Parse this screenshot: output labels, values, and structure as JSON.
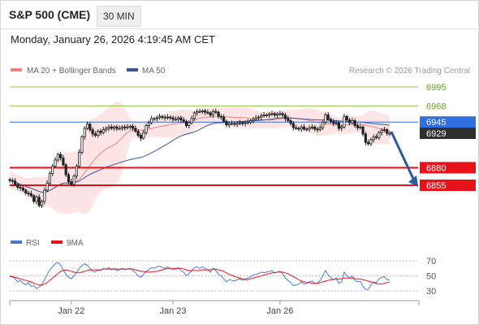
{
  "header": {
    "instrument": "S&P 500 (CME)",
    "timeframe": "30 MIN",
    "timestamp": "Monday, January 26, 2026 4:19:45 AM CET"
  },
  "legend": {
    "ma20": "MA 20 + Bollinger Bands",
    "ma50": "MA 50",
    "copyright": "Research © 2026 Trading Central",
    "rsi": "RSI",
    "ma9": "9MA"
  },
  "colors": {
    "ma20": "#f08080",
    "band": "#fde0e0",
    "ma50": "#35589a",
    "support": "#e8121b",
    "resistance_green": "#8cc63f",
    "pivot_blue": "#2f6fe0",
    "last_price": "#2f2f2f",
    "rsi": "#4a78d8",
    "rsi_ma": "#e8121b",
    "arrow": "#2b5c9a"
  },
  "chart_data": [
    {
      "type": "candlestick",
      "title": "S&P 500 (CME)",
      "interval": "30 MIN",
      "x_ticks": [
        "Jan 22",
        "Jan 23",
        "Jan 26"
      ],
      "y_range": [
        6800,
        7010
      ],
      "close": [
        6862,
        6861,
        6856,
        6852,
        6851,
        6848,
        6844,
        6843,
        6840,
        6832,
        6838,
        6826,
        6832,
        6848,
        6858,
        6872,
        6882,
        6891,
        6899,
        6894,
        6884,
        6870,
        6860,
        6856,
        6868,
        6882,
        6902,
        6924,
        6936,
        6942,
        6934,
        6928,
        6926,
        6932,
        6930,
        6934,
        6936,
        6938,
        6936,
        6938,
        6936,
        6936,
        6938,
        6937,
        6938,
        6939,
        6936,
        6932,
        6926,
        6922,
        6930,
        6940,
        6944,
        6950,
        6950,
        6951,
        6953,
        6952,
        6951,
        6952,
        6951,
        6949,
        6949,
        6951,
        6948,
        6946,
        6940,
        6944,
        6950,
        6958,
        6960,
        6960,
        6961,
        6959,
        6958,
        6955,
        6960,
        6959,
        6953,
        6952,
        6946,
        6941,
        6943,
        6943,
        6942,
        6943,
        6944,
        6943,
        6944,
        6945,
        6947,
        6949,
        6951,
        6952,
        6954,
        6955,
        6955,
        6956,
        6957,
        6955,
        6956,
        6957,
        6955,
        6950,
        6947,
        6943,
        6937,
        6936,
        6935,
        6938,
        6935,
        6935,
        6937,
        6938,
        6935,
        6934,
        6937,
        6945,
        6955,
        6949,
        6946,
        6943,
        6944,
        6936,
        6938,
        6953,
        6948,
        6944,
        6947,
        6940,
        6937,
        6938,
        6928,
        6916,
        6914,
        6920,
        6924,
        6923,
        6930,
        6933,
        6934,
        6929,
        6929
      ],
      "support_levels": [
        6880,
        6855
      ],
      "resistance_levels": [
        6995,
        6968
      ],
      "pivot": 6945,
      "last": 6929,
      "legend": [
        "MA 20 + Bollinger Bands",
        "MA 50"
      ],
      "projection": "down to 6855",
      "grid": false
    },
    {
      "type": "line",
      "series_names": [
        "RSI",
        "9MA"
      ],
      "y_ticks": [
        70,
        50,
        30
      ],
      "y_range": [
        20,
        80
      ],
      "rsi": [
        50,
        49,
        46,
        42,
        44,
        40,
        38,
        41,
        36,
        37,
        33,
        35,
        38,
        45,
        52,
        58,
        62,
        66,
        68,
        64,
        58,
        52,
        48,
        46,
        50,
        55,
        60,
        64,
        66,
        64,
        60,
        56,
        55,
        58,
        57,
        60,
        59,
        61,
        58,
        60,
        57,
        58,
        60,
        58,
        59,
        60,
        57,
        54,
        50,
        48,
        52,
        56,
        58,
        61,
        60,
        62,
        63,
        61,
        60,
        62,
        60,
        58,
        59,
        61,
        57,
        55,
        50,
        53,
        57,
        61,
        62,
        60,
        62,
        60,
        58,
        55,
        60,
        57,
        52,
        50,
        46,
        42,
        45,
        44,
        43,
        45,
        46,
        44,
        46,
        47,
        49,
        51,
        52,
        53,
        55,
        54,
        55,
        56,
        57,
        54,
        55,
        56,
        53,
        47,
        44,
        41,
        37,
        38,
        39,
        42,
        39,
        40,
        42,
        43,
        40,
        40,
        44,
        50,
        57,
        51,
        48,
        45,
        47,
        40,
        42,
        55,
        50,
        47,
        50,
        44,
        42,
        43,
        36,
        32,
        32,
        38,
        42,
        41,
        46,
        48,
        49,
        45,
        45
      ],
      "rsi_ma": [
        49,
        49,
        48,
        47,
        46,
        45,
        44,
        43,
        42,
        40,
        39,
        38,
        38,
        39,
        41,
        44,
        47,
        50,
        53,
        56,
        57,
        58,
        57,
        56,
        55,
        54,
        54,
        55,
        56,
        57,
        58,
        58,
        58,
        58,
        58,
        59,
        59,
        59,
        59,
        59,
        59,
        59,
        59,
        59,
        59,
        59,
        59,
        58,
        57,
        56,
        56,
        55,
        55,
        55,
        56,
        56,
        57,
        58,
        59,
        60,
        60,
        60,
        60,
        60,
        60,
        59,
        58,
        57,
        57,
        57,
        57,
        57,
        58,
        58,
        58,
        58,
        59,
        59,
        58,
        57,
        56,
        54,
        52,
        51,
        49,
        48,
        47,
        46,
        45,
        45,
        46,
        47,
        48,
        49,
        50,
        51,
        52,
        53,
        54,
        54,
        55,
        55,
        55,
        54,
        53,
        51,
        49,
        47,
        45,
        43,
        42,
        41,
        41,
        40,
        40,
        40,
        41,
        42,
        43,
        44,
        45,
        45,
        46,
        46,
        46,
        47,
        47,
        47,
        47,
        46,
        46,
        46,
        45,
        44,
        43,
        42,
        41,
        40,
        39,
        39,
        40,
        41,
        42
      ],
      "grid": "dashed"
    }
  ]
}
